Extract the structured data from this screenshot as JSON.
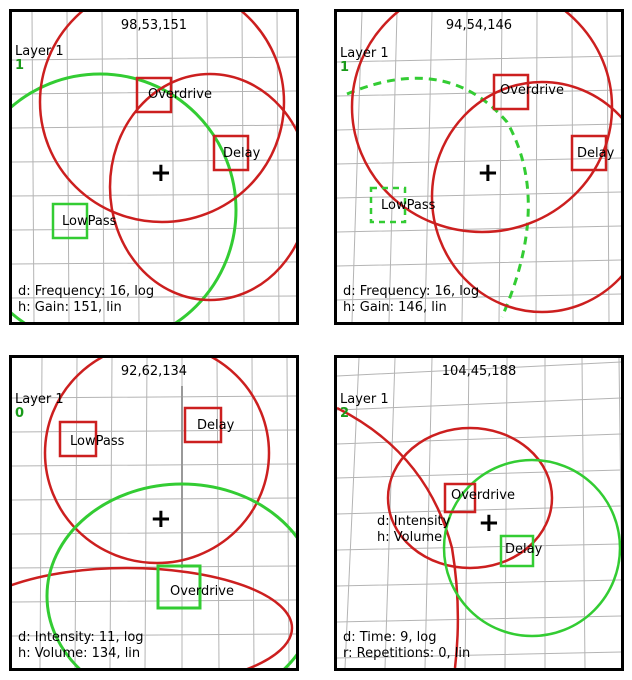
{
  "panels": [
    {
      "coords": "98,53,151",
      "layer": "Layer 1",
      "layer_num": "1",
      "nodes": {
        "overdrive": "Overdrive",
        "delay": "Delay",
        "lowpass": "LowPass"
      },
      "status": [
        "d: Frequency: 16, log",
        "h: Gain: 151, lin"
      ]
    },
    {
      "coords": "94,54,146",
      "layer": "Layer 1",
      "layer_num": "1",
      "nodes": {
        "overdrive": "Overdrive",
        "delay": "Delay",
        "lowpass": "LowPass"
      },
      "status": [
        "d: Frequency: 16, log",
        "h: Gain: 146, lin"
      ]
    },
    {
      "coords": "92,62,134",
      "layer": "Layer 1",
      "layer_num": "0",
      "nodes": {
        "lowpass": "LowPass",
        "delay": "Delay",
        "overdrive": "Overdrive"
      },
      "status": [
        "d: Intensity: 11, log",
        "h: Volume: 134, lin"
      ]
    },
    {
      "coords": "104,45,188",
      "layer": "Layer 1",
      "layer_num": "2",
      "nodes": {
        "overdrive": "Overdrive",
        "delay": "Delay"
      },
      "hover": [
        "d: Intensity",
        "h: Volume"
      ],
      "status": [
        "d: Time: 9, log",
        "r: Repetitions: 0, lin"
      ]
    }
  ],
  "colors": {
    "red": "#cc1f1f",
    "green": "#33cc33",
    "grid": "#b4b4b4"
  }
}
